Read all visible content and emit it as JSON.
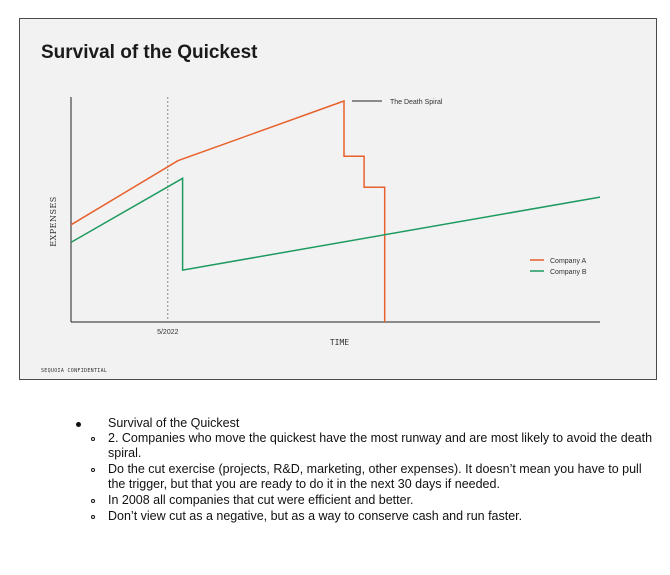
{
  "slide": {
    "title": "Survival of the Quickest",
    "confidential": "SEQUOIA CONFIDENTIAL"
  },
  "chart_data": {
    "type": "line",
    "xlabel": "TIME",
    "ylabel": "EXPENSES",
    "x_range": [
      0,
      100
    ],
    "y_range": [
      0,
      100
    ],
    "x_tick": {
      "label": "5/2022",
      "x": 18.3,
      "dashed_vertical_line": true
    },
    "legend_position": "right",
    "annotation": {
      "text": "The Death Spiral",
      "points_to": "Company A peak"
    },
    "colors": {
      "Company A": "#e8602c",
      "Company B": "#1e9b60"
    },
    "series": [
      {
        "name": "Company A",
        "points": [
          [
            0,
            44
          ],
          [
            20.2,
            73
          ],
          [
            51.6,
            100
          ],
          [
            51.6,
            75
          ],
          [
            55.4,
            75
          ],
          [
            55.4,
            61
          ],
          [
            59.3,
            61
          ],
          [
            59.3,
            0
          ]
        ]
      },
      {
        "name": "Company B",
        "points": [
          [
            0,
            36
          ],
          [
            21.1,
            65
          ],
          [
            21.1,
            23.5
          ],
          [
            100,
            56.5
          ]
        ]
      }
    ]
  },
  "notes": {
    "bullet": "Survival of the Quickest",
    "subitems": [
      "2. Companies who move the quickest have the most runway and are most likely to avoid the death spiral.",
      "Do the cut exercise (projects, R&D, marketing, other expenses). It doesn’t mean you have to pull the trigger, but that you are ready to do it in the next 30 days if needed.",
      "In 2008 all companies that cut were efficient and better.",
      "Don’t view cut as a negative, but as a way to conserve cash and run faster."
    ]
  }
}
